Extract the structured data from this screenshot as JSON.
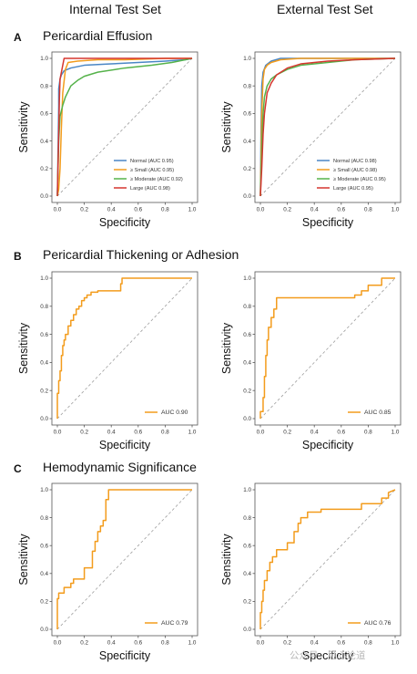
{
  "header": {
    "col_left": "Internal Test Set",
    "col_right": "External Test Set"
  },
  "panels": [
    {
      "letter": "A",
      "title": "Pericardial Effusion"
    },
    {
      "letter": "B",
      "title": "Pericardial Thickening or Adhesion"
    },
    {
      "letter": "C",
      "title": "Hemodynamic Significance"
    }
  ],
  "watermark": "公众号 · 见心论道",
  "colors": {
    "normal": "#4a86c5",
    "small": "#f39c1c",
    "moderate": "#55b24a",
    "large": "#d6362f",
    "diagonal": "#9e9e9e"
  },
  "chart_data": [
    {
      "type": "line",
      "panel": "A",
      "set": "Internal Test Set",
      "xlabel": "Specificity",
      "ylabel": "Sensitivity",
      "xlim": [
        0,
        1
      ],
      "ylim": [
        0,
        1
      ],
      "xticks": [
        "0.0",
        "0.2",
        "0.4",
        "0.6",
        "0.8",
        "1.0"
      ],
      "yticks": [
        "0.0",
        "0.2",
        "0.4",
        "0.6",
        "0.8",
        "1.0"
      ],
      "legend_position": "bottom-right",
      "series": [
        {
          "name": "Normal (AUC 0.95)",
          "color": "#4a86c5",
          "x": [
            0,
            0.01,
            0.01,
            0.02,
            0.03,
            0.05,
            0.1,
            0.2,
            0.4,
            0.6,
            0.8,
            0.95,
            1.0
          ],
          "y": [
            0,
            0.65,
            0.78,
            0.85,
            0.88,
            0.91,
            0.93,
            0.95,
            0.96,
            0.97,
            0.98,
            0.99,
            1.0
          ]
        },
        {
          "name": "≥ Small (AUC 0.95)",
          "color": "#f39c1c",
          "x": [
            0,
            0.01,
            0.02,
            0.03,
            0.04,
            0.06,
            0.08,
            0.15,
            0.3,
            0.5,
            0.8,
            1.0
          ],
          "y": [
            0,
            0.05,
            0.2,
            0.5,
            0.75,
            0.92,
            0.97,
            0.98,
            0.99,
            0.99,
            1.0,
            1.0
          ]
        },
        {
          "name": "≥ Moderate (AUC 0.92)",
          "color": "#55b24a",
          "x": [
            0,
            0.01,
            0.02,
            0.04,
            0.06,
            0.1,
            0.15,
            0.2,
            0.3,
            0.5,
            0.7,
            0.85,
            0.95,
            1.0
          ],
          "y": [
            0,
            0.4,
            0.58,
            0.66,
            0.72,
            0.8,
            0.84,
            0.87,
            0.9,
            0.93,
            0.95,
            0.97,
            0.99,
            1.0
          ]
        },
        {
          "name": "Large (AUC 0.98)",
          "color": "#d6362f",
          "x": [
            0,
            0.01,
            0.015,
            0.02,
            0.03,
            0.05,
            0.3,
            1.0
          ],
          "y": [
            0,
            0.45,
            0.7,
            0.85,
            0.9,
            1.0,
            1.0,
            1.0
          ]
        }
      ]
    },
    {
      "type": "line",
      "panel": "A",
      "set": "External Test Set",
      "xlabel": "Specificity",
      "ylabel": "Sensitivity",
      "xlim": [
        0,
        1
      ],
      "ylim": [
        0,
        1
      ],
      "xticks": [
        "0.0",
        "0.2",
        "0.4",
        "0.6",
        "0.8",
        "1.0"
      ],
      "yticks": [
        "0.0",
        "0.2",
        "0.4",
        "0.6",
        "0.8",
        "1.0"
      ],
      "legend_position": "bottom-right",
      "series": [
        {
          "name": "Normal (AUC 0.98)",
          "color": "#4a86c5",
          "x": [
            0,
            0.005,
            0.01,
            0.02,
            0.04,
            0.08,
            0.15,
            0.3,
            1.0
          ],
          "y": [
            0,
            0.5,
            0.8,
            0.9,
            0.95,
            0.98,
            1.0,
            1.0,
            1.0
          ]
        },
        {
          "name": "≥ Small (AUC 0.98)",
          "color": "#f39c1c",
          "x": [
            0,
            0.005,
            0.01,
            0.02,
            0.03,
            0.05,
            0.08,
            0.15,
            0.3,
            1.0
          ],
          "y": [
            0,
            0.3,
            0.6,
            0.85,
            0.92,
            0.95,
            0.97,
            0.99,
            1.0,
            1.0
          ]
        },
        {
          "name": "≥ Moderate (AUC 0.95)",
          "color": "#55b24a",
          "x": [
            0,
            0.01,
            0.02,
            0.03,
            0.05,
            0.08,
            0.12,
            0.2,
            0.3,
            0.5,
            0.7,
            1.0
          ],
          "y": [
            0,
            0.35,
            0.6,
            0.72,
            0.8,
            0.85,
            0.88,
            0.92,
            0.95,
            0.97,
            0.99,
            1.0
          ]
        },
        {
          "name": "Large (AUC 0.95)",
          "color": "#d6362f",
          "x": [
            0,
            0.01,
            0.02,
            0.03,
            0.05,
            0.08,
            0.12,
            0.2,
            0.3,
            0.5,
            0.7,
            1.0
          ],
          "y": [
            0,
            0.2,
            0.45,
            0.6,
            0.75,
            0.82,
            0.88,
            0.93,
            0.96,
            0.98,
            0.99,
            1.0
          ]
        }
      ]
    },
    {
      "type": "line",
      "panel": "B",
      "set": "Internal Test Set",
      "xlabel": "Specificity",
      "ylabel": "Sensitivity",
      "xlim": [
        0,
        1
      ],
      "ylim": [
        0,
        1
      ],
      "xticks": [
        "0.0",
        "0.2",
        "0.4",
        "0.6",
        "0.8",
        "1.0"
      ],
      "yticks": [
        "0.0",
        "0.2",
        "0.4",
        "0.6",
        "0.8",
        "1.0"
      ],
      "legend_position": "bottom-right",
      "series": [
        {
          "name": "AUC 0.90",
          "color": "#f39c1c",
          "x": [
            0,
            0,
            0.01,
            0.01,
            0.02,
            0.02,
            0.03,
            0.03,
            0.04,
            0.04,
            0.05,
            0.05,
            0.06,
            0.06,
            0.08,
            0.08,
            0.1,
            0.1,
            0.12,
            0.12,
            0.14,
            0.14,
            0.16,
            0.16,
            0.18,
            0.18,
            0.2,
            0.2,
            0.22,
            0.22,
            0.25,
            0.25,
            0.28,
            0.28,
            0.3,
            0.3,
            0.47,
            0.47,
            0.48,
            0.48,
            1.0
          ],
          "y": [
            0,
            0.18,
            0.18,
            0.27,
            0.27,
            0.34,
            0.34,
            0.45,
            0.45,
            0.52,
            0.52,
            0.56,
            0.56,
            0.6,
            0.6,
            0.66,
            0.66,
            0.7,
            0.7,
            0.74,
            0.74,
            0.78,
            0.78,
            0.8,
            0.8,
            0.84,
            0.84,
            0.86,
            0.86,
            0.88,
            0.88,
            0.9,
            0.9,
            0.9,
            0.9,
            0.91,
            0.91,
            0.96,
            0.96,
            1.0,
            1.0
          ]
        }
      ]
    },
    {
      "type": "line",
      "panel": "B",
      "set": "External Test Set",
      "xlabel": "Specificity",
      "ylabel": "Sensitivity",
      "xlim": [
        0,
        1
      ],
      "ylim": [
        0,
        1
      ],
      "xticks": [
        "0.0",
        "0.2",
        "0.4",
        "0.6",
        "0.8",
        "1.0"
      ],
      "yticks": [
        "0.0",
        "0.2",
        "0.4",
        "0.6",
        "0.8",
        "1.0"
      ],
      "legend_position": "bottom-right",
      "series": [
        {
          "name": "AUC 0.85",
          "color": "#f39c1c",
          "x": [
            0,
            0,
            0.02,
            0.02,
            0.03,
            0.03,
            0.04,
            0.04,
            0.05,
            0.05,
            0.06,
            0.06,
            0.08,
            0.08,
            0.1,
            0.1,
            0.12,
            0.12,
            0.7,
            0.7,
            0.75,
            0.75,
            0.8,
            0.8,
            0.9,
            0.9,
            1.0
          ],
          "y": [
            0,
            0.05,
            0.05,
            0.15,
            0.15,
            0.3,
            0.3,
            0.45,
            0.45,
            0.56,
            0.56,
            0.65,
            0.65,
            0.72,
            0.72,
            0.78,
            0.78,
            0.86,
            0.86,
            0.88,
            0.88,
            0.91,
            0.91,
            0.95,
            0.95,
            1.0,
            1.0
          ]
        }
      ]
    },
    {
      "type": "line",
      "panel": "C",
      "set": "Internal Test Set",
      "xlabel": "Specificity",
      "ylabel": "Sensitivity",
      "xlim": [
        0,
        1
      ],
      "ylim": [
        0,
        1
      ],
      "xticks": [
        "0.0",
        "0.2",
        "0.4",
        "0.6",
        "0.8",
        "1.0"
      ],
      "yticks": [
        "0.0",
        "0.2",
        "0.4",
        "0.6",
        "0.8",
        "1.0"
      ],
      "legend_position": "bottom-right",
      "series": [
        {
          "name": "AUC 0.79",
          "color": "#f39c1c",
          "x": [
            0,
            0,
            0.01,
            0.01,
            0.05,
            0.05,
            0.1,
            0.1,
            0.12,
            0.12,
            0.2,
            0.2,
            0.26,
            0.26,
            0.28,
            0.28,
            0.3,
            0.3,
            0.32,
            0.32,
            0.34,
            0.34,
            0.36,
            0.36,
            0.38,
            0.38,
            1.0
          ],
          "y": [
            0,
            0.22,
            0.22,
            0.26,
            0.26,
            0.3,
            0.3,
            0.33,
            0.33,
            0.36,
            0.36,
            0.44,
            0.44,
            0.56,
            0.56,
            0.63,
            0.63,
            0.7,
            0.7,
            0.74,
            0.74,
            0.78,
            0.78,
            0.93,
            0.93,
            1.0,
            1.0
          ]
        }
      ]
    },
    {
      "type": "line",
      "panel": "C",
      "set": "External Test Set",
      "xlabel": "Specificity",
      "ylabel": "Sensitivity",
      "xlim": [
        0,
        1
      ],
      "ylim": [
        0,
        1
      ],
      "xticks": [
        "0.0",
        "0.2",
        "0.4",
        "0.6",
        "0.8",
        "1.0"
      ],
      "yticks": [
        "0.0",
        "0.2",
        "0.4",
        "0.6",
        "0.8",
        "1.0"
      ],
      "legend_position": "bottom-right",
      "series": [
        {
          "name": "AUC 0.76",
          "color": "#f39c1c",
          "x": [
            0,
            0,
            0.01,
            0.01,
            0.02,
            0.02,
            0.03,
            0.03,
            0.05,
            0.05,
            0.07,
            0.07,
            0.09,
            0.09,
            0.12,
            0.12,
            0.2,
            0.2,
            0.25,
            0.25,
            0.28,
            0.28,
            0.3,
            0.3,
            0.35,
            0.35,
            0.45,
            0.45,
            0.6,
            0.6,
            0.75,
            0.75,
            0.9,
            0.9,
            0.95,
            0.95,
            1.0
          ],
          "y": [
            0,
            0.12,
            0.12,
            0.2,
            0.2,
            0.28,
            0.28,
            0.35,
            0.35,
            0.42,
            0.42,
            0.48,
            0.48,
            0.52,
            0.52,
            0.57,
            0.57,
            0.62,
            0.62,
            0.7,
            0.7,
            0.76,
            0.76,
            0.8,
            0.8,
            0.84,
            0.84,
            0.86,
            0.86,
            0.86,
            0.86,
            0.9,
            0.9,
            0.94,
            0.94,
            0.98,
            1.0
          ]
        }
      ]
    }
  ]
}
